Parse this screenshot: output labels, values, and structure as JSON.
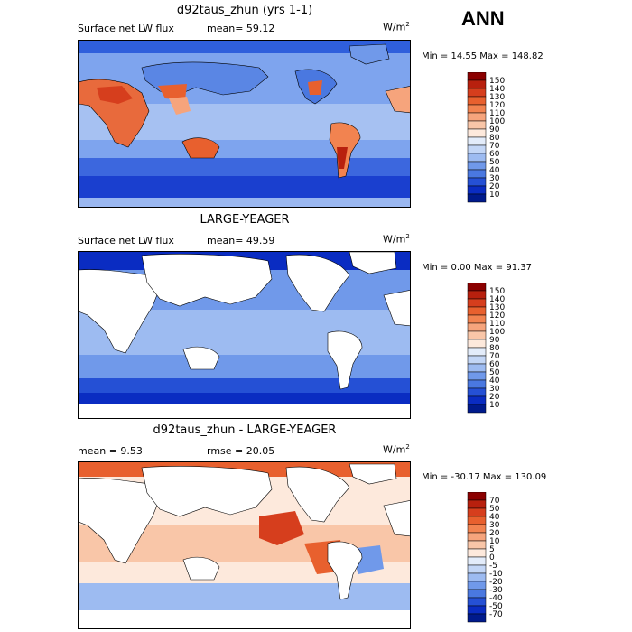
{
  "header": {
    "season": "ANN"
  },
  "panels": [
    {
      "title": "d92taus_zhun (yrs 1-1)",
      "left_label": "Surface net LW flux",
      "mid_label": "mean=  59.12",
      "units": "W/m",
      "units_sup": "2",
      "stats": "Min =  14.55 Max = 148.82",
      "colorbar_levels": [
        "150",
        "140",
        "130",
        "120",
        "110",
        "100",
        "90",
        "80",
        "70",
        "60",
        "50",
        "40",
        "30",
        "20",
        "10"
      ],
      "colorbar_colors": [
        "#8b0000",
        "#b8200e",
        "#d63e1d",
        "#e8602e",
        "#f28350",
        "#f6a47c",
        "#f9c6a8",
        "#fde9dc",
        "#e3ecfa",
        "#c3d6f6",
        "#9dbbf1",
        "#7099ea",
        "#4a78e0",
        "#2550d5",
        "#0a2cc2",
        "#001a8c"
      ]
    },
    {
      "title": "LARGE-YEAGER",
      "left_label": "Surface net LW flux",
      "mid_label": "mean=  49.59",
      "units": "W/m",
      "units_sup": "2",
      "stats": "Min =   0.00 Max =  91.37",
      "colorbar_levels": [
        "150",
        "140",
        "130",
        "120",
        "110",
        "100",
        "90",
        "80",
        "70",
        "60",
        "50",
        "40",
        "30",
        "20",
        "10"
      ],
      "colorbar_colors": [
        "#8b0000",
        "#b8200e",
        "#d63e1d",
        "#e8602e",
        "#f28350",
        "#f6a47c",
        "#f9c6a8",
        "#fde9dc",
        "#e3ecfa",
        "#c3d6f6",
        "#9dbbf1",
        "#7099ea",
        "#4a78e0",
        "#2550d5",
        "#0a2cc2",
        "#001a8c"
      ]
    },
    {
      "title": "d92taus_zhun - LARGE-YEAGER",
      "left_label": "mean =   9.53",
      "mid_label": "rmse =  20.05",
      "units": "W/m",
      "units_sup": "2",
      "stats": "Min = -30.17 Max = 130.09",
      "colorbar_levels": [
        "70",
        "50",
        "40",
        "30",
        "20",
        "10",
        "5",
        "0",
        "-5",
        "-10",
        "-20",
        "-30",
        "-40",
        "-50",
        "-70"
      ],
      "colorbar_colors": [
        "#8b0000",
        "#b8200e",
        "#d63e1d",
        "#e8602e",
        "#f28350",
        "#f6a47c",
        "#f9c6a8",
        "#fde9dc",
        "#e3ecfa",
        "#c3d6f6",
        "#9dbbf1",
        "#7099ea",
        "#4a78e0",
        "#2550d5",
        "#0a2cc2",
        "#001a8c"
      ]
    }
  ],
  "chart_data": [
    {
      "type": "heatmap",
      "title": "d92taus_zhun (yrs 1-1)",
      "variable": "Surface net LW flux",
      "units": "W/m2",
      "mean": 59.12,
      "min": 14.55,
      "max": 148.82,
      "contour_levels": [
        10,
        20,
        30,
        40,
        50,
        60,
        70,
        80,
        90,
        100,
        110,
        120,
        130,
        140,
        150
      ]
    },
    {
      "type": "heatmap",
      "title": "LARGE-YEAGER",
      "variable": "Surface net LW flux",
      "units": "W/m2",
      "mean": 49.59,
      "min": 0.0,
      "max": 91.37,
      "contour_levels": [
        10,
        20,
        30,
        40,
        50,
        60,
        70,
        80,
        90,
        100,
        110,
        120,
        130,
        140,
        150
      ]
    },
    {
      "type": "heatmap",
      "title": "d92taus_zhun - LARGE-YEAGER",
      "units": "W/m2",
      "mean": 9.53,
      "rmse": 20.05,
      "min": -30.17,
      "max": 130.09,
      "contour_levels": [
        -70,
        -50,
        -40,
        -30,
        -20,
        -10,
        -5,
        0,
        5,
        10,
        20,
        30,
        40,
        50,
        70
      ]
    }
  ]
}
